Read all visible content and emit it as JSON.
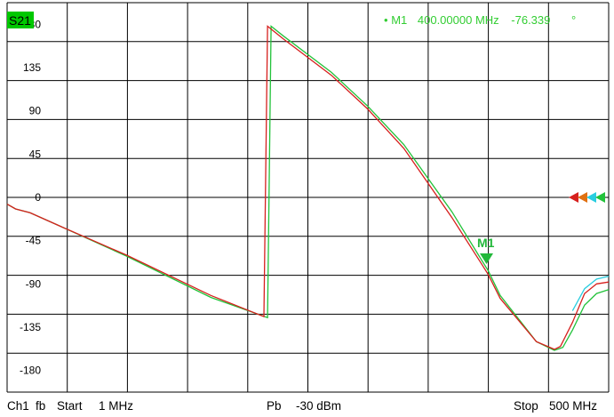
{
  "trace_label": "S21",
  "marker": {
    "bullet": "•",
    "name": "M1",
    "freq": "400.00000 MHz",
    "value": "-76.339",
    "unit": "°",
    "flag": "M1"
  },
  "status_bar": {
    "channel": "Ch1",
    "mode": "fb",
    "start_label": "Start",
    "start_value": "1 MHz",
    "power_label": "Pb",
    "power_value": "-30 dBm",
    "stop_label": "Stop",
    "stop_value": "500 MHz"
  },
  "colors": {
    "trace_label_bg": "#00c800",
    "marker_text": "#32cd32",
    "marker_symbol": "#22b83a",
    "trace_green": "#22c23a",
    "trace_red": "#d6201e",
    "trace_orange": "#e07010",
    "trace_cyan": "#29cde0",
    "grid": "#000000"
  },
  "reference_arrows": [
    {
      "name": "ref-arrow-red",
      "color": "#d6201e"
    },
    {
      "name": "ref-arrow-orange",
      "color": "#e07010"
    },
    {
      "name": "ref-arrow-cyan",
      "color": "#29cde0"
    },
    {
      "name": "ref-arrow-green",
      "color": "#22c23a"
    }
  ],
  "chart_data": {
    "type": "line",
    "title": "S21",
    "x_unit": "MHz",
    "xlim": [
      1,
      500
    ],
    "ylim": [
      -202.5,
      202.5
    ],
    "yticks": [
      180,
      135,
      90,
      45,
      0,
      -45,
      -90,
      -135,
      -180
    ],
    "grid": true,
    "series": [
      {
        "color": "#22c23a",
        "x": [
          1,
          8,
          20,
          45,
          100,
          170,
          217,
          220,
          230,
          270,
          300,
          330,
          370,
          395,
          400,
          410,
          440,
          455,
          462,
          470,
          480,
          490,
          500
        ],
        "y": [
          -7,
          -12,
          -16,
          -30,
          -61,
          -104,
          -125,
          178,
          168,
          130,
          95,
          55,
          -15,
          -66,
          -76,
          -102,
          -150,
          -159,
          -156,
          -138,
          -112,
          -100,
          -96
        ]
      },
      {
        "color": "#d6201e",
        "x": [
          1,
          8,
          20,
          45,
          100,
          170,
          214,
          217,
          230,
          270,
          300,
          330,
          370,
          395,
          400,
          410,
          440,
          455,
          460,
          470,
          480,
          490,
          500
        ],
        "y": [
          -7,
          -12,
          -16,
          -30,
          -60,
          -102,
          -124,
          178,
          165,
          127,
          92,
          51,
          -21,
          -70,
          -80,
          -105,
          -150,
          -158,
          -155,
          -130,
          -100,
          -90,
          -88
        ]
      },
      {
        "color": "#29cde0",
        "x": [
          470,
          480,
          490,
          500
        ],
        "y": [
          -118,
          -95,
          -85,
          -82
        ]
      }
    ]
  }
}
